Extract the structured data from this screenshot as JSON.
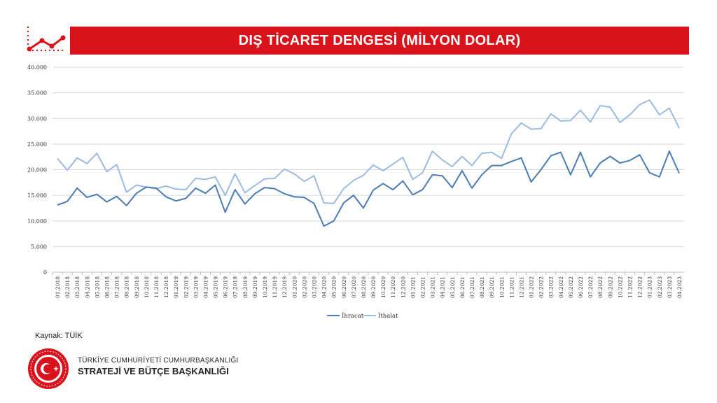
{
  "header": {
    "title": "DIŞ TİCARET DENGESİ (MİLYON DOLAR)"
  },
  "source_note": "Kaynak: TÜİK",
  "organization": {
    "line1": "TÜRKİYE CUMHURİYETİ CUMHURBAŞKANLIĞI",
    "line2": "STRATEJİ VE BÜTÇE BAŞKANLIĞI"
  },
  "colors": {
    "accent": "#d9131c",
    "ihracat": "#4a7db5",
    "ithalat": "#9dbbdf",
    "grid": "#d9d9d9"
  },
  "chart_data": {
    "type": "line",
    "title": "",
    "xlabel": "",
    "ylabel": "",
    "ylim": [
      0,
      40000
    ],
    "yticks": [
      0,
      5000,
      10000,
      15000,
      20000,
      25000,
      30000,
      35000,
      40000
    ],
    "ytick_labels": [
      "0",
      "5.000",
      "10.000",
      "15.000",
      "20.000",
      "25.000",
      "30.000",
      "35.000",
      "40.000"
    ],
    "grid": true,
    "legend_position": "bottom",
    "categories": [
      "01.2018",
      "02.2018",
      "03.2018",
      "04.2018",
      "05.2018",
      "06.2018",
      "07.2018",
      "08.2018",
      "09.2018",
      "10.2018",
      "11.2018",
      "12.2018",
      "01.2019",
      "02.2019",
      "03.2019",
      "04.2019",
      "05.2019",
      "06.2019",
      "07.2019",
      "08.2019",
      "09.2019",
      "10.2019",
      "11.2019",
      "12.2019",
      "01.2020",
      "02.2020",
      "03.2020",
      "04.2020",
      "05.2020",
      "06.2020",
      "07.2020",
      "08.2020",
      "09.2020",
      "10.2020",
      "11.2020",
      "12.2020",
      "01.2021",
      "02.2021",
      "03.2021",
      "04.2021",
      "05.2021",
      "06.2021",
      "07.2021",
      "08.2021",
      "09.2021",
      "10.2021",
      "11.2021",
      "12.2021",
      "01.2022",
      "02.2022",
      "03.2022",
      "04.2022",
      "05.2022",
      "06.2022",
      "07.2022",
      "08.2022",
      "09.2022",
      "10.2022",
      "11.2022",
      "12.2022",
      "01.2023",
      "02.2023",
      "03.2023",
      "04.2023"
    ],
    "series": [
      {
        "name": "İhracat",
        "values": [
          13100,
          13800,
          16400,
          14600,
          15200,
          13700,
          14800,
          13000,
          15400,
          16600,
          16400,
          14700,
          13900,
          14400,
          16400,
          15400,
          17000,
          11700,
          16100,
          13300,
          15300,
          16500,
          16300,
          15300,
          14700,
          14600,
          13400,
          9000,
          10000,
          13500,
          15000,
          12500,
          16000,
          17300,
          16100,
          17800,
          15100,
          16100,
          19000,
          18800,
          16500,
          19800,
          16400,
          19000,
          20800,
          20800,
          21600,
          22300,
          17600,
          20000,
          22700,
          23400,
          19000,
          23400,
          18600,
          21300,
          22600,
          21300,
          21800,
          22900,
          19400,
          18600,
          23600,
          19300
        ]
      },
      {
        "name": "İthalat",
        "values": [
          22200,
          19900,
          22300,
          21200,
          23200,
          19600,
          21000,
          15600,
          17000,
          16600,
          16300,
          16800,
          16200,
          16100,
          18300,
          18100,
          18600,
          15000,
          19200,
          15500,
          16900,
          18200,
          18300,
          20100,
          19200,
          17700,
          18800,
          13500,
          13400,
          16300,
          17900,
          18900,
          20900,
          19800,
          21100,
          22400,
          18100,
          19400,
          23600,
          21900,
          20600,
          22600,
          20800,
          23200,
          23400,
          22200,
          27000,
          29100,
          27900,
          28000,
          30900,
          29500,
          29600,
          31600,
          29300,
          32500,
          32200,
          29200,
          30700,
          32700,
          33600,
          30700,
          32000,
          28100
        ]
      }
    ]
  }
}
